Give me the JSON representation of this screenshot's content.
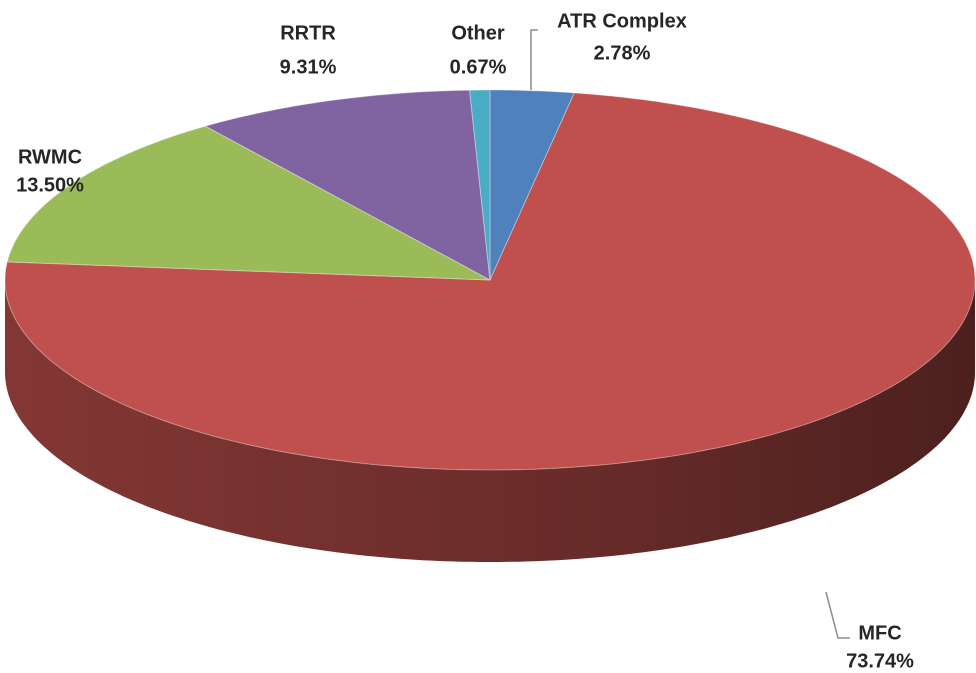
{
  "chart_data": {
    "type": "pie",
    "categories": [
      "ATR Complex",
      "MFC",
      "RWMC",
      "RRTR",
      "Other"
    ],
    "values": [
      2.78,
      73.74,
      13.5,
      9.31,
      0.67
    ],
    "value_labels": [
      "2.78%",
      "73.74%",
      "13.50%",
      "9.31%",
      "0.67%"
    ],
    "colors": [
      "#4f81bd",
      "#c0504d",
      "#9bbb59",
      "#8064a2",
      "#4bacc6"
    ]
  }
}
